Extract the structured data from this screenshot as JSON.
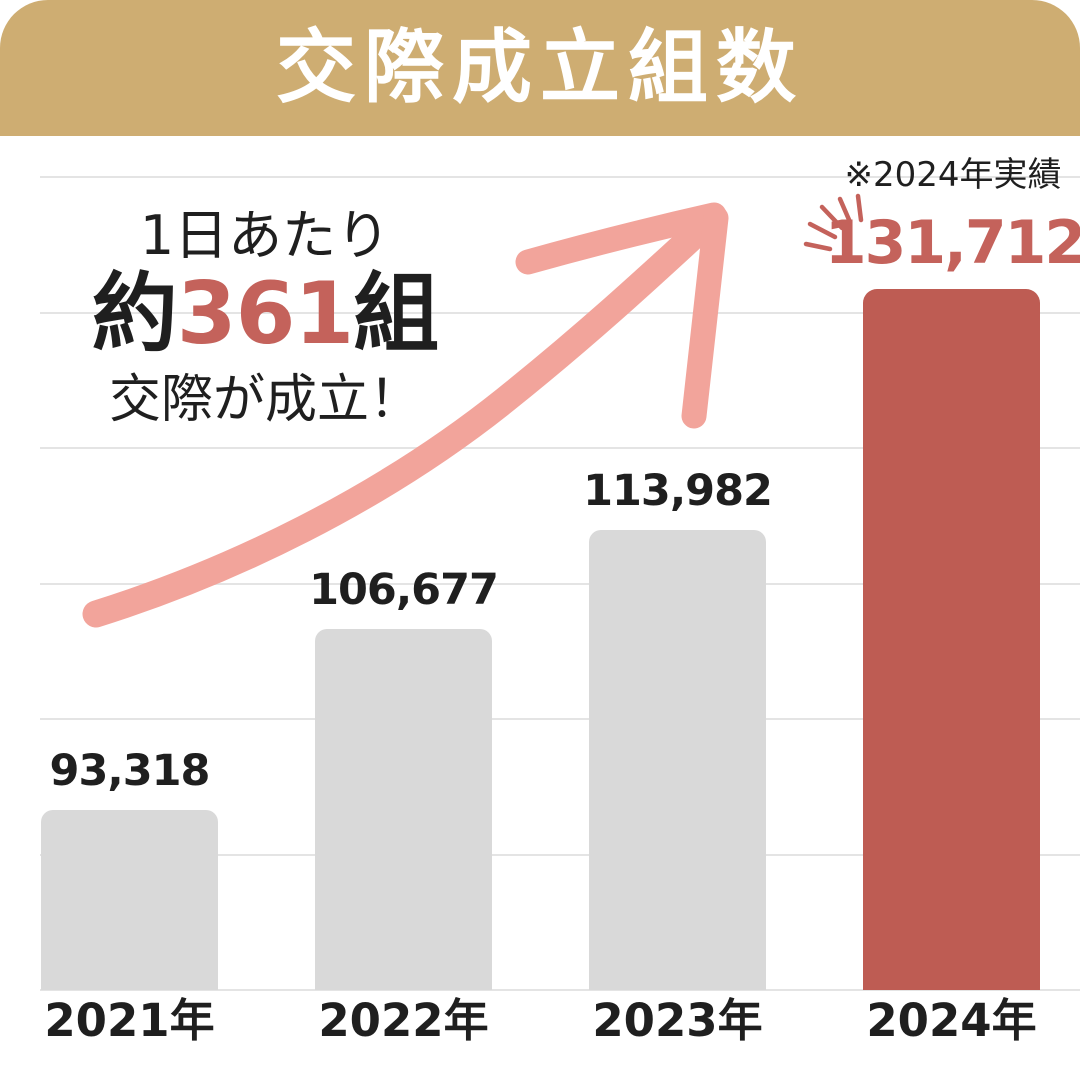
{
  "header": {
    "title": "交際成立組数"
  },
  "callout": {
    "line1": "1日あたり",
    "line2_parts": [
      {
        "text": "約",
        "red": false
      },
      {
        "text": "361",
        "red": true
      },
      {
        "text": "組",
        "red": false
      }
    ],
    "line3": "交際が成立！"
  },
  "note_label": "※2024年実績",
  "chart_data": {
    "type": "bar",
    "title": "交際成立組数",
    "categories": [
      "2021年",
      "2022年",
      "2023年",
      "2024年"
    ],
    "values": [
      93318,
      106677,
      113982,
      131712
    ],
    "value_labels": [
      "93,318",
      "106,677",
      "113,982",
      "131,712"
    ],
    "highlight_index": 3,
    "note": "※2024年実績",
    "annotation": "1日あたり約361組交際が成立！",
    "xlabel": "",
    "ylabel": "",
    "ylim": [
      80000,
      145000
    ],
    "gridline_step": 10000,
    "grid": true,
    "legend": "none"
  },
  "colors": {
    "banner": "#CEAD72",
    "bar_default": "#D9D9D9",
    "bar_highlight": "#BE5C53",
    "accent_red": "#C4625B",
    "arrow_pink": "#F2A49B",
    "gridline": "#E4E4E4",
    "text_black": "#1F1F1F",
    "white": "#FFFFFF"
  }
}
